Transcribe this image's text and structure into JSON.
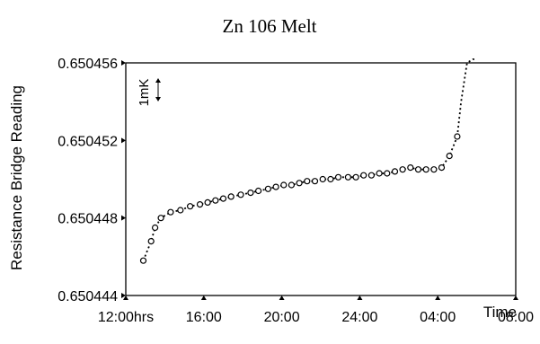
{
  "chart_data": {
    "type": "line",
    "title": "Zn 106 Melt",
    "xlabel": "Time",
    "ylabel": "Resistance Bridge Reading",
    "x_tick_labels": [
      "12:00hrs",
      "16:00",
      "20:00",
      "24:00",
      "04:00",
      "08:00"
    ],
    "x_tick_hours": [
      12,
      16,
      20,
      24,
      28,
      32
    ],
    "xlim": [
      12,
      32
    ],
    "y_tick_labels": [
      "0.650444",
      "0.650448",
      "0.650452",
      "0.650456"
    ],
    "y_tick_values": [
      0.650444,
      0.650448,
      0.650452,
      0.650456
    ],
    "ylim": [
      0.650444,
      0.650456
    ],
    "annotation": "1mK",
    "grid": false,
    "series": [
      {
        "x": [
          12.9,
          13.3,
          13.5,
          13.8,
          14.3,
          14.8,
          15.3,
          15.8,
          16.2,
          16.6,
          17.0,
          17.4,
          17.9,
          18.4,
          18.8,
          19.3,
          19.7,
          20.1,
          20.5,
          20.9,
          21.3,
          21.7,
          22.1,
          22.5,
          22.9,
          23.4,
          23.8,
          24.2,
          24.6,
          25.0,
          25.4,
          25.8,
          26.2,
          26.6,
          27.0,
          27.4,
          27.8,
          28.2,
          28.6,
          29.0
        ],
        "y": [
          0.6504458,
          0.6504468,
          0.6504475,
          0.650448,
          0.6504483,
          0.6504484,
          0.6504486,
          0.6504487,
          0.6504488,
          0.6504489,
          0.650449,
          0.6504491,
          0.6504492,
          0.6504493,
          0.6504494,
          0.6504495,
          0.6504496,
          0.6504497,
          0.6504497,
          0.6504498,
          0.6504499,
          0.6504499,
          0.65045,
          0.65045,
          0.6504501,
          0.6504501,
          0.6504501,
          0.6504502,
          0.6504502,
          0.6504503,
          0.6504503,
          0.6504504,
          0.6504505,
          0.6504506,
          0.6504505,
          0.6504505,
          0.6504505,
          0.6504506,
          0.6504512,
          0.6504522
        ],
        "tail_x": [
          29.0,
          29.2,
          29.5,
          29.8,
          29.95
        ],
        "tail_y": [
          0.6504522,
          0.650454,
          0.650456,
          0.650457,
          0.650457
        ]
      }
    ]
  }
}
